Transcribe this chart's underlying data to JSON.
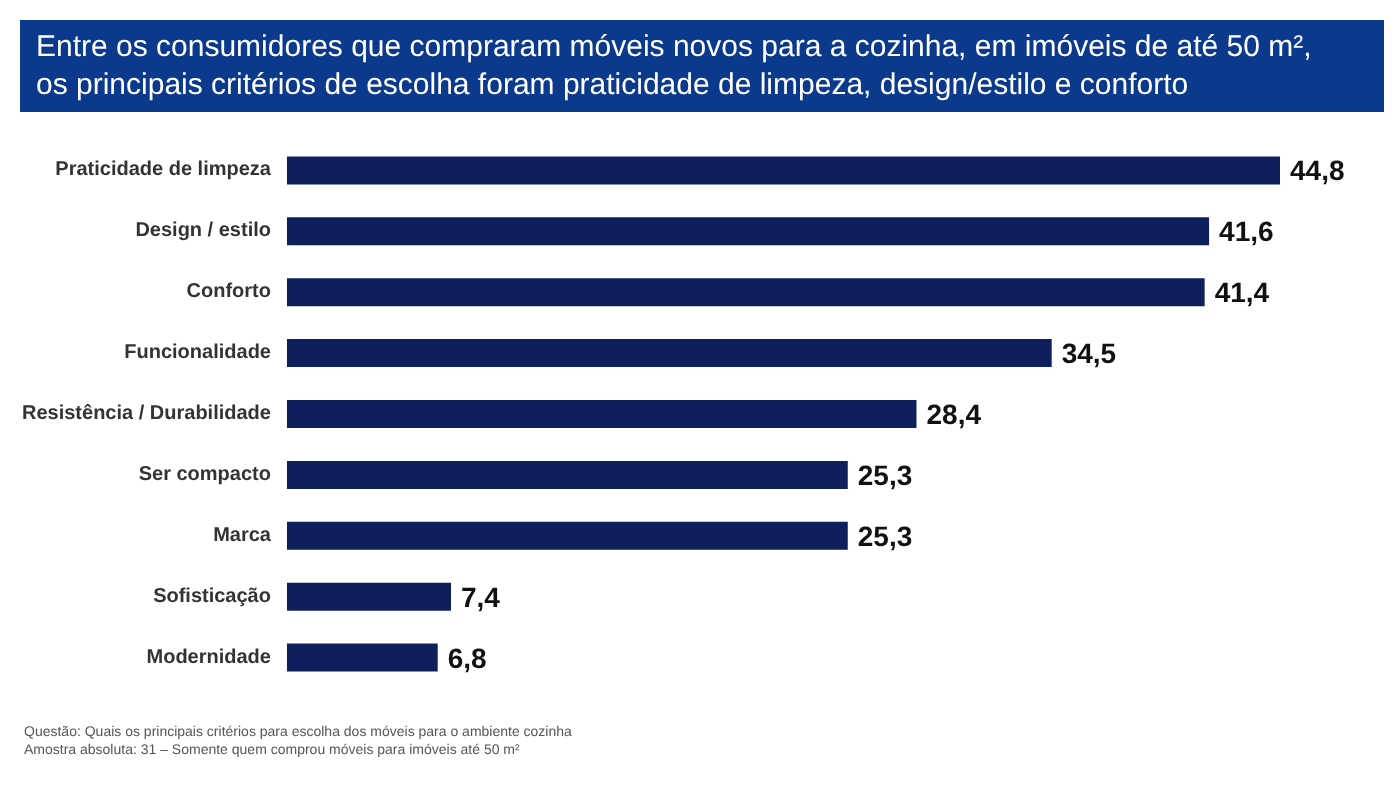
{
  "chart_data": {
    "type": "bar",
    "orientation": "horizontal",
    "title": "Entre os consumidores que compraram móveis novos para a cozinha, em imóveis de até 50 m², os principais critérios de escolha foram praticidade de limpeza, design/estilo e conforto",
    "categories": [
      "Praticidade de limpeza",
      "Design / estilo",
      "Conforto",
      "Funcionalidade",
      "Resistência / Durabilidade",
      "Ser compacto",
      "Marca",
      "Sofisticação",
      "Modernidade"
    ],
    "values": [
      44.8,
      41.6,
      41.4,
      34.5,
      28.4,
      25.3,
      25.3,
      7.4,
      6.8
    ],
    "value_labels": [
      "44,8",
      "41,6",
      "41,4",
      "34,5",
      "28,4",
      "25,3",
      "25,3",
      "7,4",
      "6,8"
    ],
    "color": "#0e1f5b",
    "annotations": [
      "Questão: Quais os principais critérios para escolha dos móveis para o ambiente cozinha",
      "Amostra absoluta: 31 – Somente quem comprou móveis para imóveis até 50 m²"
    ]
  }
}
